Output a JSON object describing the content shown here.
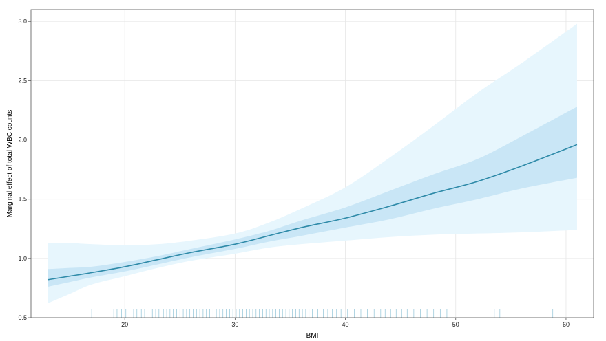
{
  "chart_data": {
    "type": "line",
    "title": "",
    "xlabel": "BMI",
    "ylabel": "Marginal effect of total WBC counts",
    "xlim": [
      11.5,
      62.5
    ],
    "ylim": [
      0.5,
      3.1
    ],
    "x_ticks": [
      20,
      30,
      40,
      50,
      60
    ],
    "y_ticks": [
      0.5,
      1.0,
      1.5,
      2.0,
      2.5,
      3.0
    ],
    "x_tick_labels": [
      "20",
      "30",
      "40",
      "50",
      "60"
    ],
    "y_tick_labels": [
      "0.5",
      "1.0",
      "1.5",
      "2.0",
      "2.5",
      "3.0"
    ],
    "grid": true,
    "legend": "none",
    "colors": {
      "line": "#2e8aa8",
      "inner_band": "#c9e6f6",
      "outer_band": "#e7f6fd",
      "rug": "#8fc3d6",
      "grid": "#e6e6e6",
      "frame": "#555555"
    },
    "series": [
      {
        "x": [
          13,
          15,
          17,
          20,
          23,
          26,
          30,
          33,
          36,
          40,
          44,
          48,
          52,
          56,
          61
        ],
        "estimate": [
          0.82,
          0.85,
          0.88,
          0.93,
          0.99,
          1.05,
          1.12,
          1.19,
          1.26,
          1.34,
          1.44,
          1.55,
          1.65,
          1.78,
          1.96
        ],
        "ci_inner_lower": [
          0.76,
          0.8,
          0.84,
          0.89,
          0.95,
          1.01,
          1.08,
          1.14,
          1.19,
          1.26,
          1.33,
          1.42,
          1.5,
          1.59,
          1.68
        ],
        "ci_inner_upper": [
          0.91,
          0.92,
          0.93,
          0.97,
          1.02,
          1.08,
          1.16,
          1.23,
          1.32,
          1.43,
          1.57,
          1.71,
          1.84,
          2.03,
          2.28
        ],
        "ci_outer_lower": [
          0.62,
          0.7,
          0.78,
          0.85,
          0.92,
          0.98,
          1.04,
          1.09,
          1.12,
          1.15,
          1.18,
          1.2,
          1.21,
          1.22,
          1.24
        ],
        "ci_outer_upper": [
          1.13,
          1.13,
          1.12,
          1.11,
          1.12,
          1.15,
          1.21,
          1.3,
          1.42,
          1.6,
          1.85,
          2.12,
          2.4,
          2.65,
          2.98
        ]
      }
    ],
    "rug_x": [
      17,
      19,
      19.3,
      19.7,
      20.1,
      20.4,
      20.8,
      21.1,
      21.5,
      21.8,
      22.2,
      22.5,
      22.8,
      23.1,
      23.5,
      23.8,
      24.1,
      24.4,
      24.7,
      25,
      25.3,
      25.6,
      25.9,
      26.2,
      26.5,
      26.8,
      27.1,
      27.4,
      27.7,
      28,
      28.3,
      28.6,
      28.9,
      29.2,
      29.5,
      29.8,
      30.1,
      30.4,
      30.7,
      31,
      31.3,
      31.6,
      31.9,
      32.2,
      32.5,
      32.8,
      33.1,
      33.4,
      33.7,
      34,
      34.3,
      34.6,
      34.9,
      35.2,
      35.5,
      35.8,
      36.1,
      36.4,
      36.7,
      37,
      37.5,
      38,
      38.4,
      38.8,
      39.2,
      39.6,
      40.2,
      40.8,
      41.4,
      42,
      42.6,
      43.2,
      43.6,
      44.1,
      44.6,
      45.1,
      45.6,
      46.2,
      46.8,
      47.4,
      48,
      48.6,
      49.2,
      53.5,
      54,
      58.8
    ]
  }
}
